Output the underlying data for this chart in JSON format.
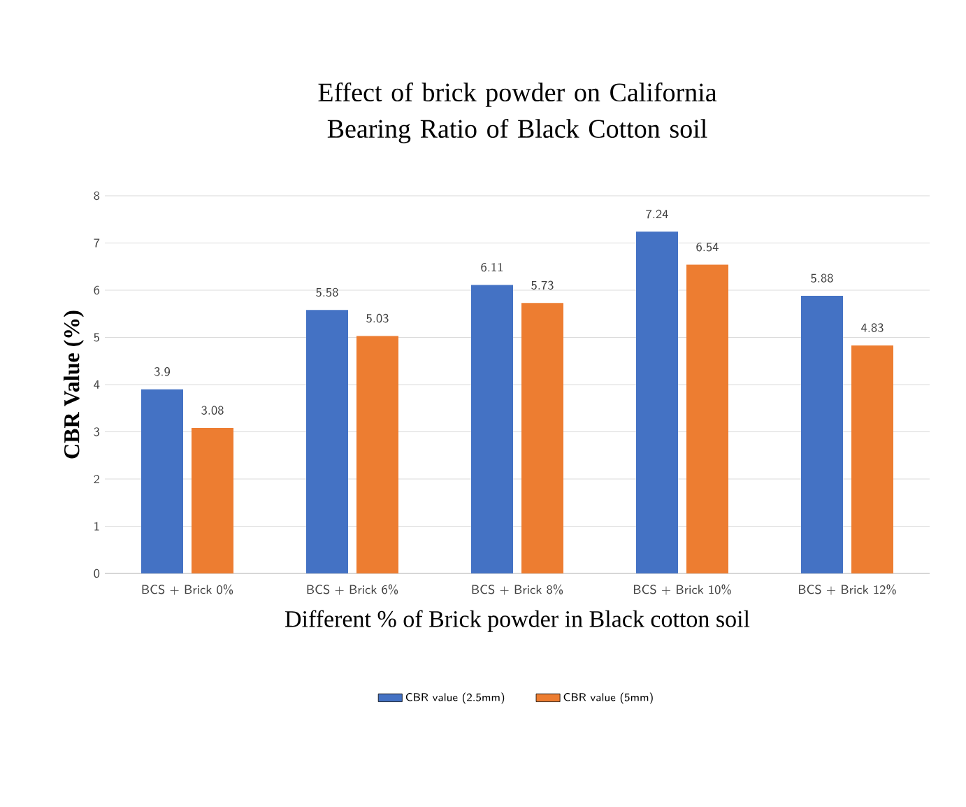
{
  "chart_data": {
    "type": "bar",
    "title": "Effect of brick powder on California Bearing Ratio of Black Cotton soil",
    "xlabel": "Different % of Brick powder in Black cotton soil",
    "ylabel": "CBR Value (%)",
    "categories": [
      "BCS + Brick 0%",
      "BCS + Brick 6%",
      "BCS + Brick 8%",
      "BCS + Brick 10%",
      "BCS + Brick 12%"
    ],
    "series": [
      {
        "name": "CBR value (2.5mm)",
        "color": "#4472c4",
        "values": [
          3.9,
          5.58,
          6.11,
          7.24,
          5.88
        ]
      },
      {
        "name": "CBR value (5mm)",
        "color": "#ed7d31",
        "values": [
          3.08,
          5.03,
          5.73,
          6.54,
          4.83
        ]
      }
    ],
    "ylim": [
      0,
      8
    ],
    "yticks": [
      0,
      1,
      2,
      3,
      4,
      5,
      6,
      7,
      8
    ],
    "grid": "y",
    "legend": "bottom",
    "data_labels": true
  }
}
